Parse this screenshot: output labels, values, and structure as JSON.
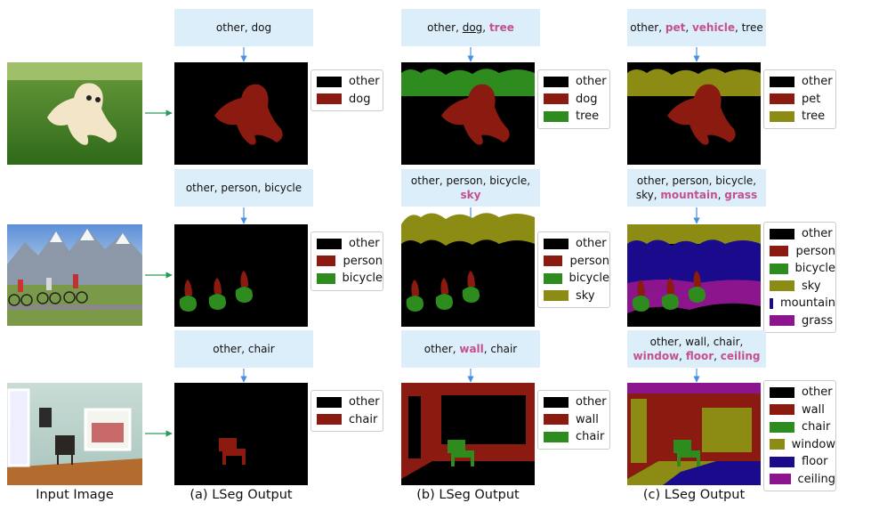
{
  "columns": [
    "Input Image",
    "(a) LSeg Output",
    "(b) LSeg Output",
    "(c) LSeg Output"
  ],
  "rows": [
    {
      "outputs": [
        {
          "prompt": [
            [
              {
                "text": "other, dog"
              }
            ]
          ],
          "legend": [
            {
              "label": "other",
              "color": "#000000"
            },
            {
              "label": "dog",
              "color": "#8b1a10"
            }
          ]
        },
        {
          "prompt": [
            [
              {
                "text": "other, "
              },
              {
                "text": "dog",
                "style": "underline"
              },
              {
                "text": ", "
              },
              {
                "text": "tree",
                "style": "highlight"
              }
            ]
          ],
          "legend": [
            {
              "label": "other",
              "color": "#000000"
            },
            {
              "label": "dog",
              "color": "#8b1a10"
            },
            {
              "label": "tree",
              "color": "#2e8b1e"
            }
          ]
        },
        {
          "prompt": [
            [
              {
                "text": "other, "
              },
              {
                "text": "pet",
                "style": "highlight"
              },
              {
                "text": ", "
              },
              {
                "text": "vehicle",
                "style": "highlight"
              },
              {
                "text": ", tree"
              }
            ]
          ],
          "legend": [
            {
              "label": "other",
              "color": "#000000"
            },
            {
              "label": "pet",
              "color": "#8b1a10"
            },
            {
              "label": "tree",
              "color": "#8c8c14"
            }
          ]
        }
      ]
    },
    {
      "outputs": [
        {
          "prompt": [
            [
              {
                "text": "other, person, bicycle"
              }
            ]
          ],
          "legend": [
            {
              "label": "other",
              "color": "#000000"
            },
            {
              "label": "person",
              "color": "#8b1a10"
            },
            {
              "label": "bicycle",
              "color": "#2e8b1e"
            }
          ]
        },
        {
          "prompt": [
            [
              {
                "text": "other, person, bicycle,"
              }
            ],
            [
              {
                "text": "sky",
                "style": "highlight"
              }
            ]
          ],
          "legend": [
            {
              "label": "other",
              "color": "#000000"
            },
            {
              "label": "person",
              "color": "#8b1a10"
            },
            {
              "label": "bicycle",
              "color": "#2e8b1e"
            },
            {
              "label": "sky",
              "color": "#8c8c14"
            }
          ]
        },
        {
          "prompt": [
            [
              {
                "text": "other, person, bicycle,"
              }
            ],
            [
              {
                "text": "sky, "
              },
              {
                "text": "mountain",
                "style": "highlight"
              },
              {
                "text": ", "
              },
              {
                "text": "grass",
                "style": "highlight"
              }
            ]
          ],
          "legend": [
            {
              "label": "other",
              "color": "#000000"
            },
            {
              "label": "person",
              "color": "#8b1a10"
            },
            {
              "label": "bicycle",
              "color": "#2e8b1e"
            },
            {
              "label": "sky",
              "color": "#8c8c14"
            },
            {
              "label": "mountain",
              "color": "#1a0a8c"
            },
            {
              "label": "grass",
              "color": "#8c148c"
            }
          ]
        }
      ]
    },
    {
      "outputs": [
        {
          "prompt": [
            [
              {
                "text": "other, chair"
              }
            ]
          ],
          "legend": [
            {
              "label": "other",
              "color": "#000000"
            },
            {
              "label": "chair",
              "color": "#8b1a10"
            }
          ]
        },
        {
          "prompt": [
            [
              {
                "text": "other, "
              },
              {
                "text": "wall",
                "style": "highlight"
              },
              {
                "text": ", chair"
              }
            ]
          ],
          "legend": [
            {
              "label": "other",
              "color": "#000000"
            },
            {
              "label": "wall",
              "color": "#8b1a10"
            },
            {
              "label": "chair",
              "color": "#2e8b1e"
            }
          ]
        },
        {
          "prompt": [
            [
              {
                "text": "other, wall, chair,"
              }
            ],
            [
              {
                "text": "window",
                "style": "highlight"
              },
              {
                "text": ", "
              },
              {
                "text": "floor",
                "style": "highlight"
              },
              {
                "text": ", "
              },
              {
                "text": "ceiling",
                "style": "highlight"
              }
            ]
          ],
          "legend": [
            {
              "label": "other",
              "color": "#000000"
            },
            {
              "label": "wall",
              "color": "#8b1a10"
            },
            {
              "label": "chair",
              "color": "#2e8b1e"
            },
            {
              "label": "window",
              "color": "#8c8c14"
            },
            {
              "label": "floor",
              "color": "#1a0a8c"
            },
            {
              "label": "ceiling",
              "color": "#8c148c"
            }
          ]
        }
      ]
    }
  ]
}
